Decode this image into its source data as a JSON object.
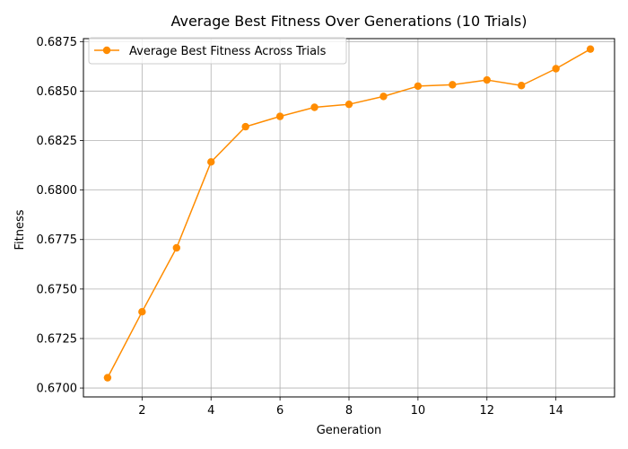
{
  "chart_data": {
    "type": "line",
    "title": "Average Best Fitness Over Generations (10 Trials)",
    "xlabel": "Generation",
    "ylabel": "Fitness",
    "xlim": [
      0.3,
      15.7
    ],
    "ylim": [
      0.66955,
      0.68765
    ],
    "xticks": [
      2,
      4,
      6,
      8,
      10,
      12,
      14
    ],
    "xtick_labels": [
      "2",
      "4",
      "6",
      "8",
      "10",
      "12",
      "14"
    ],
    "yticks": [
      0.67,
      0.6725,
      0.675,
      0.6775,
      0.68,
      0.6825,
      0.685,
      0.6875
    ],
    "ytick_labels": [
      "0.6700",
      "0.6725",
      "0.6750",
      "0.6775",
      "0.6800",
      "0.6825",
      "0.6850",
      "0.6875"
    ],
    "grid": true,
    "legend": {
      "placement": "top-left",
      "entries": [
        "Average Best Fitness Across Trials"
      ]
    },
    "series": [
      {
        "name": "Average Best Fitness Across Trials",
        "color": "#ff8c00",
        "marker": "circle",
        "x": [
          1,
          2,
          3,
          4,
          5,
          6,
          7,
          8,
          9,
          10,
          11,
          12,
          13,
          14,
          15
        ],
        "values": [
          0.67052,
          0.67385,
          0.67708,
          0.68142,
          0.6832,
          0.68372,
          0.68418,
          0.68433,
          0.68473,
          0.68525,
          0.68532,
          0.68556,
          0.68528,
          0.68613,
          0.68712
        ]
      }
    ]
  }
}
